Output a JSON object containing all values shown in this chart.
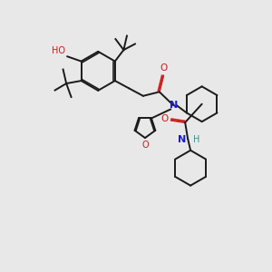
{
  "bg_color": "#e8e8e8",
  "bond_color": "#1a1a1a",
  "N_color": "#1a1acc",
  "O_color": "#cc1a1a",
  "H_color": "#3a9090",
  "lw": 1.4,
  "fs": 6.5,
  "figsize": [
    3.0,
    3.0
  ],
  "dpi": 100,
  "xlim": [
    0,
    10
  ],
  "ylim": [
    0,
    10
  ]
}
